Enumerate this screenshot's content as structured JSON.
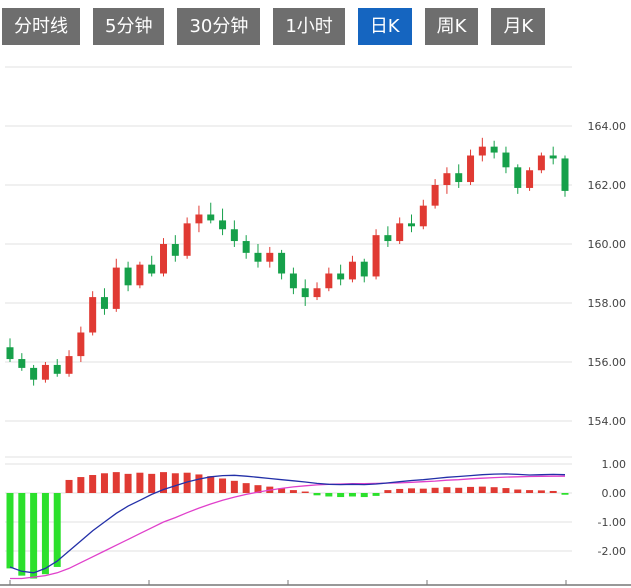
{
  "toolbar": {
    "tabs": [
      {
        "label": "分时线",
        "active": false
      },
      {
        "label": "5分钟",
        "active": false
      },
      {
        "label": "30分钟",
        "active": false
      },
      {
        "label": "1小时",
        "active": false
      },
      {
        "label": "日K",
        "active": true
      },
      {
        "label": "周K",
        "active": false
      },
      {
        "label": "月K",
        "active": false
      }
    ]
  },
  "colors": {
    "tab_bg": "#6e6e6e",
    "tab_active_bg": "#1565c0",
    "tab_text": "#ffffff",
    "up": "#e03a33",
    "down": "#16a04a",
    "hist_up": "#e03a33",
    "hist_down": "#2ce02c",
    "dif_line": "#2330a8",
    "dea_line": "#e040cb",
    "grid": "#e2e2e2",
    "axis_text": "#444444",
    "axis_line": "#777777"
  },
  "chart_data": {
    "type": "candlestick",
    "title": "",
    "period_selected": "日K",
    "main_panel": {
      "y_grid": [
        166,
        164,
        162,
        160,
        158,
        156,
        154
      ],
      "y_label_values": [
        164,
        162,
        160,
        158,
        156,
        154
      ],
      "y_axis_labels": [
        "164.00",
        "162.00",
        "160.00",
        "158.00",
        "156.00",
        "154.00"
      ],
      "ylim": [
        152.8,
        166.3
      ],
      "candles_ohlc": [
        [
          156.5,
          156.8,
          156.0,
          156.1
        ],
        [
          156.1,
          156.3,
          155.7,
          155.8
        ],
        [
          155.8,
          155.9,
          155.2,
          155.4
        ],
        [
          155.4,
          156.0,
          155.3,
          155.9
        ],
        [
          155.9,
          156.1,
          155.5,
          155.6
        ],
        [
          155.6,
          156.4,
          155.5,
          156.2
        ],
        [
          156.2,
          157.2,
          156.0,
          157.0
        ],
        [
          157.0,
          158.4,
          156.9,
          158.2
        ],
        [
          158.2,
          158.5,
          157.6,
          157.8
        ],
        [
          157.8,
          159.5,
          157.7,
          159.2
        ],
        [
          159.2,
          159.4,
          158.4,
          158.6
        ],
        [
          158.6,
          159.4,
          158.5,
          159.3
        ],
        [
          159.3,
          159.6,
          158.9,
          159.0
        ],
        [
          159.0,
          160.2,
          158.9,
          160.0
        ],
        [
          160.0,
          160.3,
          159.4,
          159.6
        ],
        [
          159.6,
          160.9,
          159.5,
          160.7
        ],
        [
          160.7,
          161.3,
          160.4,
          161.0
        ],
        [
          161.0,
          161.4,
          160.7,
          160.8
        ],
        [
          160.8,
          161.2,
          160.3,
          160.5
        ],
        [
          160.5,
          160.8,
          159.9,
          160.1
        ],
        [
          160.1,
          160.3,
          159.5,
          159.7
        ],
        [
          159.7,
          160.0,
          159.2,
          159.4
        ],
        [
          159.4,
          159.9,
          159.2,
          159.7
        ],
        [
          159.7,
          159.8,
          158.8,
          159.0
        ],
        [
          159.0,
          159.2,
          158.3,
          158.5
        ],
        [
          158.5,
          158.8,
          157.9,
          158.2
        ],
        [
          158.2,
          158.7,
          158.1,
          158.5
        ],
        [
          158.5,
          159.2,
          158.4,
          159.0
        ],
        [
          159.0,
          159.3,
          158.6,
          158.8
        ],
        [
          158.8,
          159.6,
          158.7,
          159.4
        ],
        [
          159.4,
          159.5,
          158.7,
          158.9
        ],
        [
          158.9,
          160.5,
          158.8,
          160.3
        ],
        [
          160.3,
          160.6,
          159.9,
          160.1
        ],
        [
          160.1,
          160.9,
          160.0,
          160.7
        ],
        [
          160.7,
          161.0,
          160.4,
          160.6
        ],
        [
          160.6,
          161.5,
          160.5,
          161.3
        ],
        [
          161.3,
          162.2,
          161.2,
          162.0
        ],
        [
          162.0,
          162.6,
          161.7,
          162.4
        ],
        [
          162.4,
          162.7,
          161.9,
          162.1
        ],
        [
          162.1,
          163.2,
          162.0,
          163.0
        ],
        [
          163.0,
          163.6,
          162.8,
          163.3
        ],
        [
          163.3,
          163.5,
          162.9,
          163.1
        ],
        [
          163.1,
          163.3,
          162.4,
          162.6
        ],
        [
          162.6,
          162.7,
          161.7,
          161.9
        ],
        [
          161.9,
          162.6,
          161.8,
          162.5
        ],
        [
          162.5,
          163.1,
          162.4,
          163.0
        ],
        [
          163.0,
          163.3,
          162.7,
          162.9
        ],
        [
          162.9,
          163.0,
          161.6,
          161.8
        ]
      ]
    },
    "indicator_panel": {
      "name": "MACD",
      "y_grid": [
        1,
        0,
        -1,
        -2
      ],
      "y_label_values": [
        1,
        0,
        -1,
        -2
      ],
      "y_axis_labels": [
        "1.00",
        "0.00",
        "-1.00",
        "-2.00"
      ],
      "ylim": [
        -3.1,
        1.2
      ],
      "histogram": [
        -2.6,
        -2.85,
        -2.95,
        -2.8,
        -2.55,
        0.45,
        0.55,
        0.62,
        0.68,
        0.72,
        0.66,
        0.7,
        0.66,
        0.72,
        0.68,
        0.7,
        0.64,
        0.58,
        0.5,
        0.42,
        0.34,
        0.27,
        0.22,
        0.16,
        0.1,
        0.05,
        -0.08,
        -0.12,
        -0.14,
        -0.12,
        -0.14,
        -0.1,
        0.1,
        0.14,
        0.16,
        0.15,
        0.18,
        0.2,
        0.18,
        0.21,
        0.22,
        0.2,
        0.17,
        0.12,
        0.1,
        0.09,
        0.07,
        -0.06
      ],
      "dif": [
        -2.55,
        -2.7,
        -2.75,
        -2.6,
        -2.35,
        -2.0,
        -1.65,
        -1.3,
        -1.0,
        -0.7,
        -0.45,
        -0.25,
        -0.05,
        0.12,
        0.25,
        0.38,
        0.48,
        0.56,
        0.6,
        0.61,
        0.58,
        0.54,
        0.5,
        0.46,
        0.42,
        0.38,
        0.33,
        0.3,
        0.29,
        0.3,
        0.29,
        0.31,
        0.35,
        0.39,
        0.43,
        0.46,
        0.5,
        0.54,
        0.57,
        0.6,
        0.63,
        0.65,
        0.66,
        0.64,
        0.62,
        0.63,
        0.64,
        0.63
      ],
      "dea": [
        -2.95,
        -2.95,
        -2.9,
        -2.85,
        -2.75,
        -2.6,
        -2.4,
        -2.2,
        -2.0,
        -1.8,
        -1.6,
        -1.4,
        -1.2,
        -1.0,
        -0.85,
        -0.68,
        -0.52,
        -0.38,
        -0.25,
        -0.14,
        -0.05,
        0.03,
        0.1,
        0.16,
        0.21,
        0.25,
        0.28,
        0.3,
        0.31,
        0.32,
        0.32,
        0.33,
        0.34,
        0.35,
        0.37,
        0.39,
        0.41,
        0.44,
        0.46,
        0.49,
        0.51,
        0.53,
        0.55,
        0.56,
        0.57,
        0.575,
        0.58,
        0.58
      ]
    }
  }
}
